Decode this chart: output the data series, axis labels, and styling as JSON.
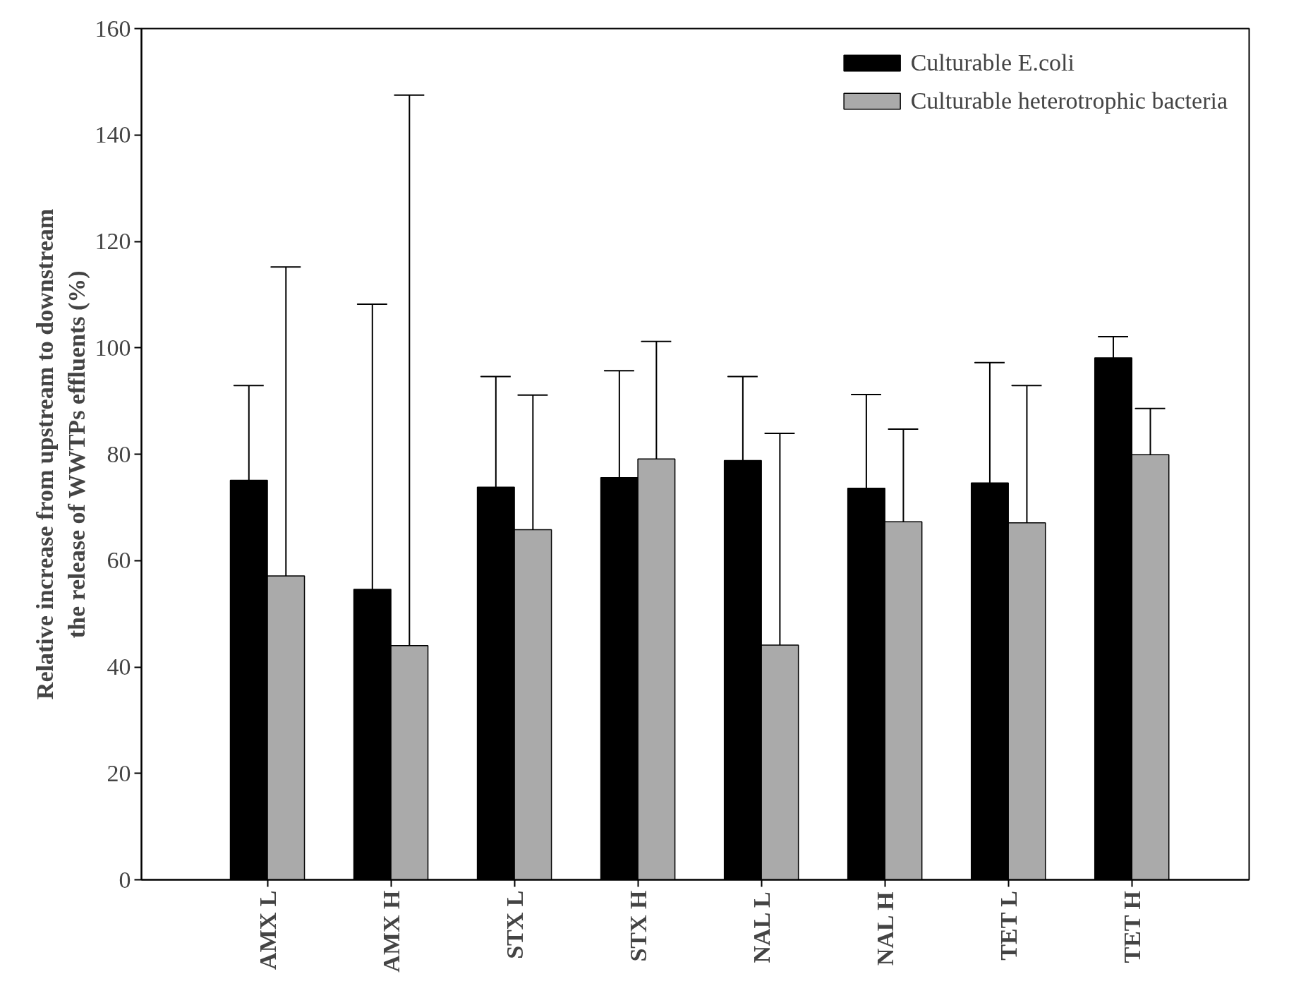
{
  "chart_data": {
    "type": "bar",
    "ylabel": "Relative increase from upstream to downstream\nthe release of WWTPs effluents (%)",
    "categories": [
      "AMX L",
      "AMX H",
      "STX L",
      "STX H",
      "NAL L",
      "NAL H",
      "TET L",
      "TET H"
    ],
    "series": [
      {
        "name": "Culturable E.coli",
        "color": "#000000",
        "values": [
          75.1,
          54.6,
          73.8,
          75.6,
          78.8,
          73.6,
          74.6,
          98.1
        ],
        "errors": [
          [
            75.1,
            92.9
          ],
          [
            54.6,
            108.2
          ],
          [
            73.8,
            94.6
          ],
          [
            75.6,
            95.7
          ],
          [
            78.8,
            94.6
          ],
          [
            73.6,
            91.2
          ],
          [
            74.6,
            97.2
          ],
          [
            98.1,
            102.1
          ]
        ]
      },
      {
        "name": "Culturable heterotrophic bacteria",
        "color": "#aaaaaa",
        "values": [
          57.1,
          44.0,
          65.8,
          79.1,
          44.1,
          67.3,
          67.1,
          79.9
        ],
        "errors": [
          [
            57.1,
            115.2
          ],
          [
            44.0,
            147.5
          ],
          [
            65.8,
            91.1
          ],
          [
            79.1,
            101.2
          ],
          [
            44.1,
            83.9
          ],
          [
            67.3,
            84.7
          ],
          [
            67.1,
            92.9
          ],
          [
            79.9,
            88.6
          ]
        ]
      }
    ],
    "ylim": [
      0,
      160
    ],
    "yticks": [
      0,
      20,
      40,
      60,
      80,
      100,
      120,
      140,
      160
    ],
    "grid": false,
    "legend": "top right"
  }
}
